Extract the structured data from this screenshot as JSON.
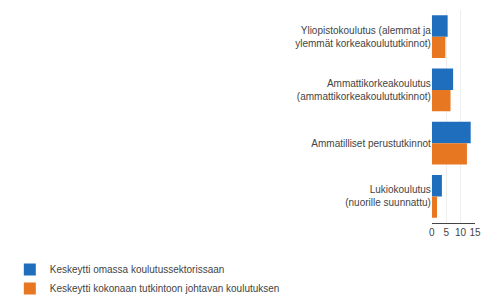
{
  "chart_data": {
    "type": "bar",
    "orientation": "horizontal",
    "categories": [
      "Yliopistokoulutus (alemmat ja\nylemmät korkeakoulututkinnot)",
      "Ammattikorkeakoulutus\n(ammattikorkeakoulututkinnot)",
      "Ammatilliset perustutkinnot",
      "Lukiokoulutus\n(nuorille suunnattu)"
    ],
    "series": [
      {
        "name": "Keskeytti omassa koulutussektorissaan",
        "color": "#1F6EBD",
        "values": [
          5.5,
          7.4,
          13.5,
          3.5
        ]
      },
      {
        "name": "Keskeytti kokonaan tutkintoon johtavan koulutuksen",
        "color": "#E87722",
        "values": [
          4.7,
          6.5,
          12.2,
          1.8
        ]
      }
    ],
    "xlim": [
      0,
      15
    ],
    "xticks": [
      0,
      5,
      10,
      15
    ],
    "grid": true,
    "legend": "bottom left"
  }
}
